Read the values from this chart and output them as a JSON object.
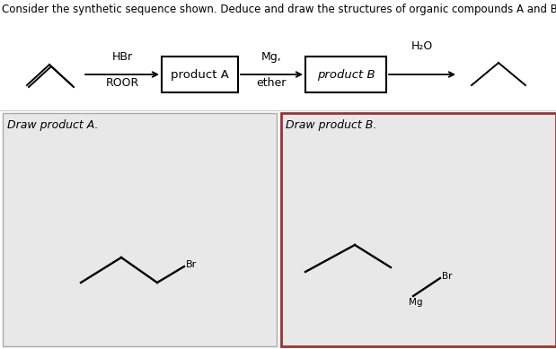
{
  "white": "#ffffff",
  "black": "#000000",
  "panel_bg": "#e8e8e8",
  "panel_b_border": "#993333",
  "title_text": "Consider the synthetic sequence shown. Deduce and draw the structures of organic compounds A and B. Omit all byproduc",
  "title_fontsize": 8.5,
  "scheme": {
    "hbr_label": "HBr",
    "roor_label": "ROOR",
    "mg_label": "Mg,",
    "ether_label": "ether",
    "h2o_label": "H₂O",
    "product_a_label": "product A",
    "product_b_label": "product B"
  },
  "draw_a_label": "Draw product A.",
  "draw_b_label": "Draw product B."
}
